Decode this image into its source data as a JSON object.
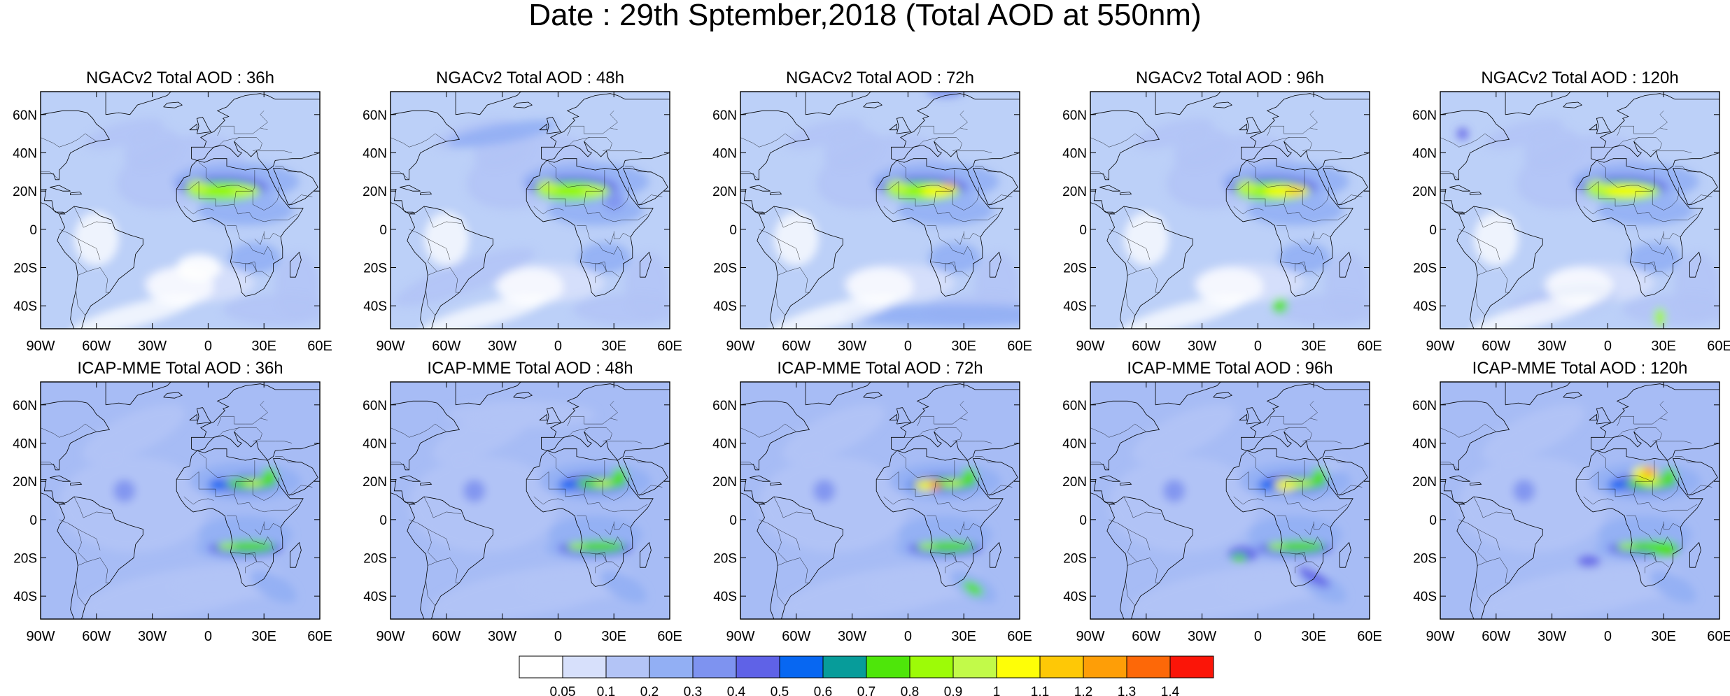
{
  "title": "Date : 29th Sptember,2018 (Total AOD at 550nm)",
  "panels": [
    {
      "title": "NGACv2 Total AOD : 36h"
    },
    {
      "title": "NGACv2 Total AOD : 48h"
    },
    {
      "title": "NGACv2 Total AOD : 72h"
    },
    {
      "title": "NGACv2 Total AOD : 96h"
    },
    {
      "title": "NGACv2 Total AOD : 120h"
    },
    {
      "title": "ICAP-MME Total AOD : 36h"
    },
    {
      "title": "ICAP-MME Total AOD : 48h"
    },
    {
      "title": "ICAP-MME Total AOD : 72h"
    },
    {
      "title": "ICAP-MME Total AOD : 96h"
    },
    {
      "title": "ICAP-MME Total AOD : 120h"
    }
  ],
  "lat_ticks": [
    "60N",
    "40N",
    "20N",
    "0",
    "20S",
    "40S"
  ],
  "lon_ticks": [
    "90W",
    "60W",
    "30W",
    "0",
    "30E",
    "60E"
  ],
  "colorbar": {
    "labels": [
      "0.05",
      "0.1",
      "0.2",
      "0.3",
      "0.4",
      "0.5",
      "0.6",
      "0.7",
      "0.8",
      "0.9",
      "1",
      "1.1",
      "1.2",
      "1.3",
      "1.4"
    ],
    "colors": [
      "#ffffff",
      "#d7e0fb",
      "#b3c4f6",
      "#92aff4",
      "#7e93f0",
      "#5f62e7",
      "#0767f2",
      "#079c9a",
      "#4ee60a",
      "#9dfb07",
      "#c2fa49",
      "#fefe07",
      "#fec806",
      "#fe9e07",
      "#fd6808",
      "#fb1508"
    ]
  }
}
